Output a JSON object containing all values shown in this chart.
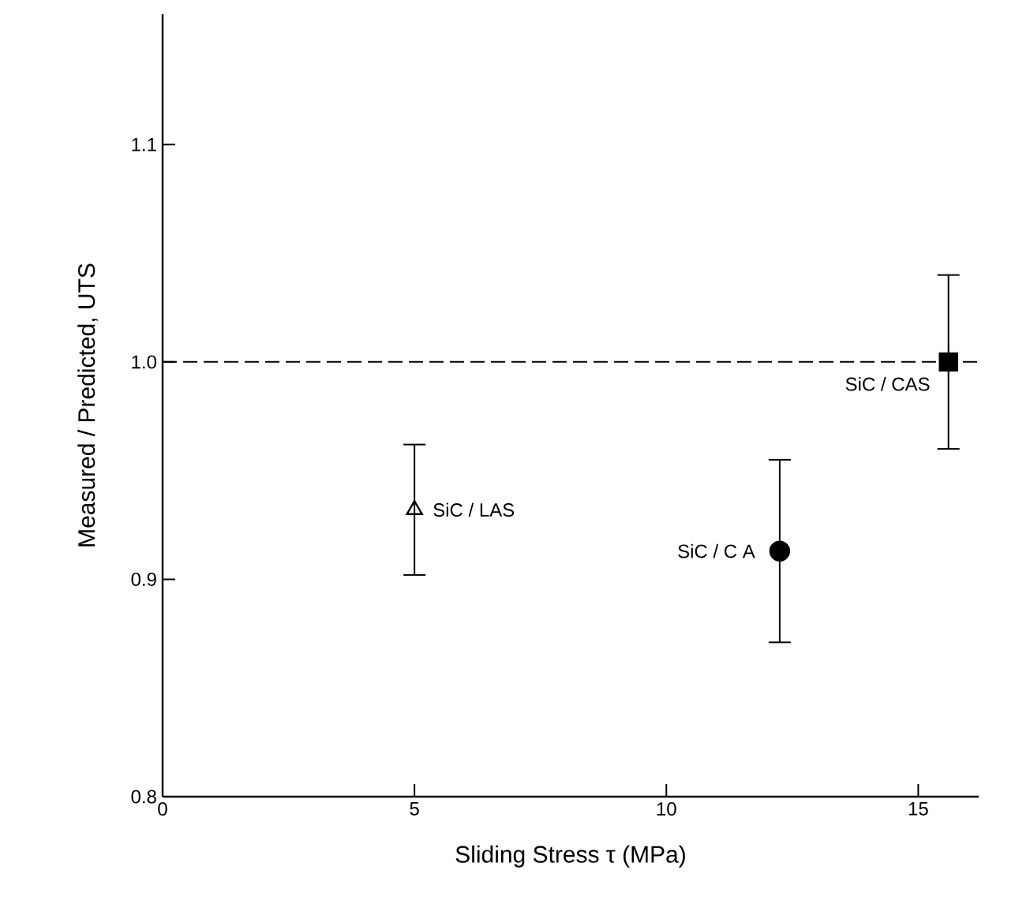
{
  "chart_data": {
    "type": "scatter",
    "xlabel": "Sliding Stress τ (MPa)",
    "ylabel": "Measured / Predicted, UTS",
    "xlim": [
      0,
      16.2
    ],
    "ylim": [
      0.8,
      1.16
    ],
    "xticks": [
      0,
      5,
      10,
      15
    ],
    "yticks": [
      0.8,
      0.9,
      {
        "value": 1,
        "label": "1.0"
      },
      1.1
    ],
    "grid": false,
    "ref_lines": [
      {
        "axis": "y",
        "value": 1,
        "line_style": "dashed",
        "color": "#000000"
      }
    ],
    "series": [
      {
        "name": "SiC / LAS",
        "marker": "triangle",
        "color": "#000000",
        "x": [
          5
        ],
        "values": [
          0.932
        ],
        "errors": [
          0.03
        ]
      },
      {
        "name": "SiC / C A",
        "marker": "circle",
        "color": "#000000",
        "x": [
          12.25
        ],
        "values": [
          0.913
        ],
        "errors": [
          0.042
        ]
      },
      {
        "name": "SiC / CAS",
        "marker": "square",
        "color": "#000000",
        "x": [
          15.6
        ],
        "values": [
          1.0
        ],
        "errors": [
          0.04
        ]
      }
    ]
  }
}
